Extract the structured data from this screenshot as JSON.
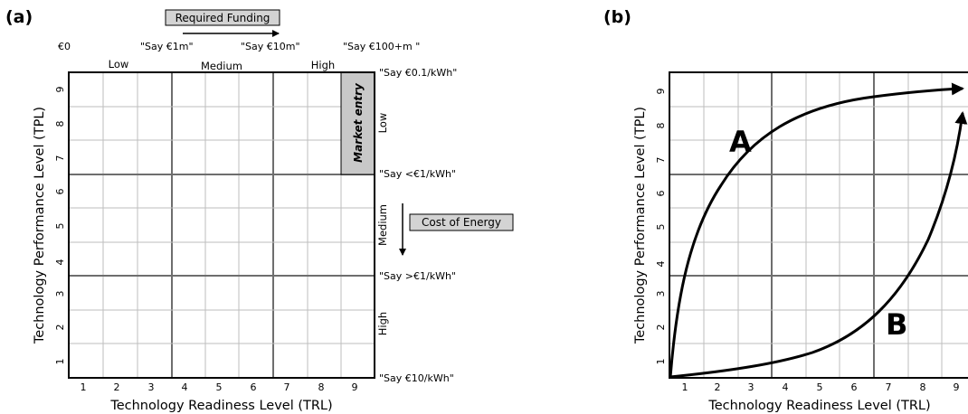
{
  "panel_a": {
    "label": "(a)",
    "required_funding": "Required Funding",
    "funding_labels": [
      "€0",
      "\"Say €1m\"",
      "\"Say €10m\"",
      "\"Say €100+m \""
    ],
    "top_categories": [
      "Low",
      "Medium",
      "High"
    ],
    "cost_labels": [
      "\"Say €0.1/kWh\"",
      "\"Say <€1/kWh\"",
      "\"Say >€1/kWh\"",
      "\"Say €10/kWh\""
    ],
    "right_categories": [
      "Low",
      "Medium",
      "High"
    ],
    "cost_of_energy": "Cost of Energy",
    "market_entry": "Market entry",
    "x_ticks": [
      "1",
      "2",
      "3",
      "4",
      "5",
      "6",
      "7",
      "8",
      "9"
    ],
    "y_ticks": [
      "1",
      "2",
      "3",
      "4",
      "5",
      "6",
      "7",
      "8",
      "9"
    ],
    "xlabel": "Technology Readiness Level (TRL)",
    "ylabel": "Technology Performance Level (TPL)"
  },
  "panel_b": {
    "label": "(b)",
    "x_ticks": [
      "1",
      "2",
      "3",
      "4",
      "5",
      "6",
      "7",
      "8",
      "9"
    ],
    "y_ticks": [
      "1",
      "2",
      "3",
      "4",
      "5",
      "6",
      "7",
      "8",
      "9"
    ],
    "xlabel": "Technology Readiness Level (TRL)",
    "ylabel": "Technology Performance Level (TPL)",
    "curve_a_label": "A",
    "curve_b_label": "B"
  }
}
